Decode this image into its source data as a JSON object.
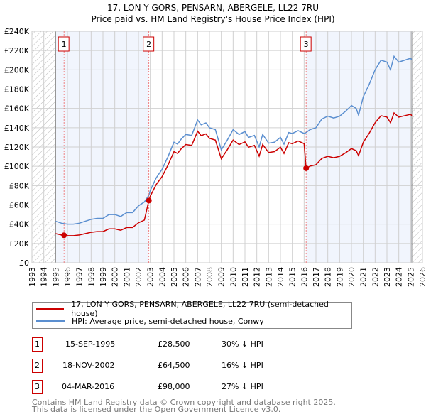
{
  "chart_data": {
    "type": "line",
    "title": "17, LON Y GORS, PENSARN, ABERGELE, LL22 7RU",
    "subtitle": "Price paid vs. HM Land Registry's House Price Index (HPI)",
    "xlim": [
      1993,
      2026
    ],
    "ylim": [
      0,
      240000
    ],
    "x_ticks": [
      "1993",
      "1994",
      "1995",
      "1996",
      "1997",
      "1998",
      "1999",
      "2000",
      "2001",
      "2002",
      "2003",
      "2004",
      "2005",
      "2006",
      "2007",
      "2008",
      "2009",
      "2010",
      "2011",
      "2012",
      "2013",
      "2014",
      "2015",
      "2016",
      "2017",
      "2018",
      "2019",
      "2020",
      "2021",
      "2022",
      "2023",
      "2024",
      "2025",
      "2026"
    ],
    "y_ticks": [
      "£0",
      "£20K",
      "£40K",
      "£60K",
      "£80K",
      "£100K",
      "£120K",
      "£140K",
      "£160K",
      "£180K",
      "£200K",
      "£220K",
      "£240K"
    ],
    "grid": true,
    "series": [
      {
        "name": "HPI: Average price, semi-detached house, Conwy",
        "color": "#5b8fd0",
        "x": [
          1995,
          1995.5,
          1996,
          1996.5,
          1997,
          1997.5,
          1998,
          1998.5,
          1999,
          1999.5,
          2000,
          2000.5,
          2001,
          2001.5,
          2002,
          2002.5,
          2002.88,
          2003,
          2003.5,
          2004,
          2004.5,
          2005,
          2005.3,
          2005.6,
          2006,
          2006.5,
          2007,
          2007.3,
          2007.7,
          2008,
          2008.5,
          2009,
          2009.5,
          2010,
          2010.5,
          2011,
          2011.3,
          2011.8,
          2012.2,
          2012.5,
          2013,
          2013.5,
          2014,
          2014.3,
          2014.7,
          2015,
          2015.5,
          2016,
          2016.17,
          2016.5,
          2017,
          2017.5,
          2018,
          2018.5,
          2019,
          2019.5,
          2020,
          2020.4,
          2020.6,
          2021,
          2021.5,
          2022,
          2022.5,
          2023,
          2023.3,
          2023.6,
          2024,
          2024.5,
          2025,
          2025.1
        ],
        "y": [
          43000,
          41000,
          40000,
          40000,
          41000,
          43000,
          45000,
          46000,
          46000,
          50000,
          50000,
          48000,
          52000,
          52000,
          59000,
          63000,
          70000,
          75000,
          88000,
          97000,
          110000,
          125000,
          123000,
          128000,
          133000,
          132000,
          148000,
          143000,
          145000,
          140000,
          138000,
          117000,
          127000,
          138000,
          133000,
          136000,
          130000,
          132000,
          120000,
          133000,
          124000,
          125000,
          130000,
          123000,
          135000,
          134000,
          137000,
          134000,
          135000,
          138000,
          140000,
          149000,
          152000,
          150000,
          152000,
          157000,
          163000,
          160000,
          153000,
          172000,
          185000,
          200000,
          210000,
          208000,
          200000,
          214000,
          208000,
          210000,
          212000,
          210000
        ]
      },
      {
        "name": "17, LON Y GORS, PENSARN, ABERGELE, LL22 7RU (semi-detached house)",
        "color": "#cc0000"
      }
    ],
    "sales": [
      {
        "label": "1",
        "date": "15-SEP-1995",
        "x": 1995.71,
        "price": "£28,500",
        "value": 28500,
        "hpi": "30% ↓ HPI"
      },
      {
        "label": "2",
        "date": "18-NOV-2002",
        "x": 2002.88,
        "price": "£64,500",
        "value": 64500,
        "hpi": "16% ↓ HPI"
      },
      {
        "label": "3",
        "date": "04-MAR-2016",
        "x": 2016.17,
        "price": "£98,000",
        "value": 98000,
        "hpi": "27% ↓ HPI"
      }
    ],
    "shaded_ranges": [
      [
        1995,
        2002.88
      ],
      [
        2016.17,
        2025.1
      ]
    ],
    "hatched_ranges": [
      [
        1993,
        1995
      ],
      [
        2025.1,
        2026
      ]
    ],
    "legend_position": "below"
  },
  "footer": [
    "Contains HM Land Registry data © Crown copyright and database right 2025.",
    "This data is licensed under the Open Government Licence v3.0."
  ]
}
